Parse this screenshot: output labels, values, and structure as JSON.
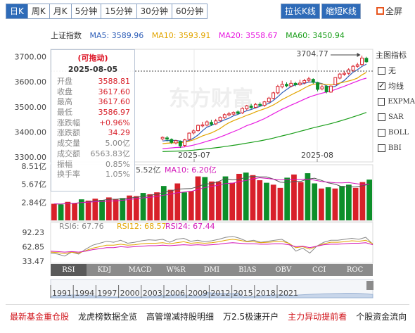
{
  "toolbar": {
    "tabs": [
      {
        "label": "日K",
        "active": true
      },
      {
        "label": "周K",
        "active": false
      },
      {
        "label": "月K",
        "active": false
      },
      {
        "label": "5分钟",
        "active": false
      },
      {
        "label": "15分钟",
        "active": false
      },
      {
        "label": "30分钟",
        "active": false
      },
      {
        "label": "60分钟",
        "active": false
      }
    ],
    "stretch_label": "拉长K线",
    "shrink_label": "缩短K线",
    "fullscreen_label": "全屏"
  },
  "indicator_header": {
    "name": "上证指数",
    "ma5": "MA5: 3589.96",
    "ma10": "MA10: 3593.91",
    "ma20": "MA20: 3558.67",
    "ma60": "MA60: 3450.94"
  },
  "colors": {
    "up": "#d8202a",
    "down": "#0d8f2a",
    "ma5": "#2f5fb8",
    "ma10": "#e2a500",
    "ma20": "#e81ae0",
    "ma60": "#1a9e1a",
    "accent": "#2e6bb8"
  },
  "right_panel": {
    "title": "主图指标",
    "options": [
      {
        "label": "无",
        "checked": false
      },
      {
        "label": "均线",
        "checked": true
      },
      {
        "label": "EXPMA",
        "checked": false
      },
      {
        "label": "SAR",
        "checked": false
      },
      {
        "label": "BOLL",
        "checked": false
      },
      {
        "label": "BBI",
        "checked": false
      }
    ]
  },
  "tooltip": {
    "header": "(可拖动)",
    "date": "2025-08-05",
    "rows": [
      {
        "key": "开盘",
        "value": "3588.81"
      },
      {
        "key": "收盘",
        "value": "3617.60"
      },
      {
        "key": "最高",
        "value": "3617.60"
      },
      {
        "key": "最低",
        "value": "3586.97"
      },
      {
        "key": "涨跌幅",
        "value": "+0.96%"
      },
      {
        "key": "涨跌额",
        "value": "34.29"
      },
      {
        "key": "成交量",
        "value": "5.00亿"
      },
      {
        "key": "成交额",
        "value": "6563.83亿"
      },
      {
        "key": "振幅",
        "value": "0.85%"
      },
      {
        "key": "换手率",
        "value": "1.05%"
      }
    ]
  },
  "main_axis": {
    "y_ticks": [
      "3700.00",
      "3600.00",
      "3500.00",
      "3400.00",
      "3300.00"
    ],
    "x_ticks": [
      "2025-07",
      "2025-08"
    ],
    "max_label": "3704.77",
    "watermark": "东方财富"
  },
  "volume_panel": {
    "y_ticks": [
      "8.51亿",
      "5.67亿",
      "2.84亿"
    ],
    "legend_ma5": "5.52亿",
    "legend_ma10": "MA10: 6.20亿"
  },
  "rsi_panel": {
    "y_ticks": [
      "92.23",
      "62.85",
      "33.47"
    ],
    "rsi6": "RSI6: 67.76",
    "rsi12": "RSI12: 68.57",
    "rsi24": "RSI24: 67.44"
  },
  "indicator_tabs": [
    "RSI",
    "KDJ",
    "MACD",
    "W%R",
    "DMI",
    "BIAS",
    "OBV",
    "CCI",
    "ROC"
  ],
  "timeline_years": [
    "1991",
    "1994",
    "1997",
    "2000",
    "2003",
    "2006",
    "2009",
    "2012",
    "2015",
    "2018",
    "2021"
  ],
  "footer_links": [
    {
      "label": "最新基金重仓股",
      "color": "red"
    },
    {
      "label": "龙虎榜数据全览",
      "color": "normal"
    },
    {
      "label": "高管增减持股明细",
      "color": "normal"
    },
    {
      "label": "万2.5极速开户",
      "color": "normal"
    },
    {
      "label": "主力异动提前看",
      "color": "red"
    },
    {
      "label": "个股资金流向",
      "color": "normal"
    }
  ],
  "chart_data": {
    "type": "candlestick",
    "price_range": [
      3280,
      3730
    ],
    "candles": [
      {
        "o": 3372,
        "c": 3378,
        "h": 3382,
        "l": 3366
      },
      {
        "o": 3376,
        "c": 3371,
        "h": 3384,
        "l": 3362
      },
      {
        "o": 3370,
        "c": 3358,
        "h": 3374,
        "l": 3352
      },
      {
        "o": 3356,
        "c": 3365,
        "h": 3368,
        "l": 3350
      },
      {
        "o": 3362,
        "c": 3344,
        "h": 3366,
        "l": 3336
      },
      {
        "o": 3346,
        "c": 3368,
        "h": 3372,
        "l": 3340
      },
      {
        "o": 3370,
        "c": 3395,
        "h": 3398,
        "l": 3366
      },
      {
        "o": 3396,
        "c": 3404,
        "h": 3410,
        "l": 3390
      },
      {
        "o": 3405,
        "c": 3426,
        "h": 3430,
        "l": 3400
      },
      {
        "o": 3424,
        "c": 3428,
        "h": 3440,
        "l": 3418
      },
      {
        "o": 3427,
        "c": 3440,
        "h": 3446,
        "l": 3422
      },
      {
        "o": 3438,
        "c": 3430,
        "h": 3448,
        "l": 3424
      },
      {
        "o": 3432,
        "c": 3444,
        "h": 3452,
        "l": 3428
      },
      {
        "o": 3445,
        "c": 3458,
        "h": 3462,
        "l": 3440
      },
      {
        "o": 3457,
        "c": 3469,
        "h": 3474,
        "l": 3452
      },
      {
        "o": 3468,
        "c": 3472,
        "h": 3480,
        "l": 3462
      },
      {
        "o": 3471,
        "c": 3478,
        "h": 3482,
        "l": 3466
      },
      {
        "o": 3480,
        "c": 3474,
        "h": 3486,
        "l": 3470
      },
      {
        "o": 3476,
        "c": 3494,
        "h": 3498,
        "l": 3472
      },
      {
        "o": 3492,
        "c": 3504,
        "h": 3508,
        "l": 3486
      },
      {
        "o": 3503,
        "c": 3497,
        "h": 3512,
        "l": 3492
      },
      {
        "o": 3498,
        "c": 3510,
        "h": 3516,
        "l": 3494
      },
      {
        "o": 3510,
        "c": 3506,
        "h": 3518,
        "l": 3502
      },
      {
        "o": 3506,
        "c": 3520,
        "h": 3524,
        "l": 3500
      },
      {
        "o": 3520,
        "c": 3535,
        "h": 3540,
        "l": 3516
      },
      {
        "o": 3534,
        "c": 3556,
        "h": 3560,
        "l": 3530
      },
      {
        "o": 3556,
        "c": 3582,
        "h": 3588,
        "l": 3550
      },
      {
        "o": 3580,
        "c": 3590,
        "h": 3604,
        "l": 3574
      },
      {
        "o": 3590,
        "c": 3584,
        "h": 3598,
        "l": 3578
      },
      {
        "o": 3583,
        "c": 3594,
        "h": 3606,
        "l": 3578
      },
      {
        "o": 3594,
        "c": 3588,
        "h": 3600,
        "l": 3582
      },
      {
        "o": 3589,
        "c": 3595,
        "h": 3608,
        "l": 3584
      },
      {
        "o": 3596,
        "c": 3605,
        "h": 3612,
        "l": 3590
      },
      {
        "o": 3606,
        "c": 3612,
        "h": 3620,
        "l": 3598
      },
      {
        "o": 3610,
        "c": 3598,
        "h": 3614,
        "l": 3592
      },
      {
        "o": 3597,
        "c": 3570,
        "h": 3600,
        "l": 3562
      },
      {
        "o": 3572,
        "c": 3580,
        "h": 3588,
        "l": 3566
      },
      {
        "o": 3582,
        "c": 3560,
        "h": 3586,
        "l": 3554
      },
      {
        "o": 3559,
        "c": 3583,
        "h": 3586,
        "l": 3556
      },
      {
        "o": 3588,
        "c": 3617,
        "h": 3618,
        "l": 3586
      },
      {
        "o": 3615,
        "c": 3631,
        "h": 3636,
        "l": 3610
      },
      {
        "o": 3630,
        "c": 3634,
        "h": 3642,
        "l": 3624
      },
      {
        "o": 3634,
        "c": 3648,
        "h": 3654,
        "l": 3628
      },
      {
        "o": 3646,
        "c": 3662,
        "h": 3668,
        "l": 3640
      },
      {
        "o": 3662,
        "c": 3668,
        "h": 3676,
        "l": 3656
      },
      {
        "o": 3669,
        "c": 3695,
        "h": 3704.77,
        "l": 3664
      },
      {
        "o": 3694,
        "c": 3680,
        "h": 3700,
        "l": 3676
      }
    ],
    "volume": [
      2.6,
      2.5,
      2.9,
      2.7,
      3.3,
      3.1,
      3.4,
      3.2,
      3.6,
      3.3,
      3.5,
      3.9,
      3.8,
      4.3,
      4.1,
      4.4,
      5.4,
      4.8,
      5.8,
      4.4,
      4.6,
      6.9,
      6.8,
      6.1,
      6.1,
      6.9,
      5.9,
      7.3,
      7.5,
      7.1,
      6.3,
      5.9,
      5.6,
      5.1,
      6.7,
      7.2,
      6.0,
      7.4,
      5.8,
      5.0,
      5.2,
      5.0,
      5.4,
      5.6,
      5.1,
      6.0,
      6.4
    ],
    "volume_range": [
      0,
      8.51
    ],
    "rsi_range": [
      33.47,
      92.23
    ],
    "series": [
      {
        "name": "RSI6",
        "values": [
          50,
          48,
          44,
          52,
          48,
          58,
          66,
          70,
          74,
          72,
          76,
          70,
          72,
          75,
          77,
          76,
          78,
          72,
          78,
          80,
          74,
          76,
          73,
          75,
          78,
          82,
          84,
          80,
          74,
          76,
          72,
          74,
          76,
          78,
          70,
          54,
          60,
          50,
          64,
          72,
          76,
          76,
          78,
          80,
          78,
          82,
          68
        ]
      },
      {
        "name": "RSI12",
        "values": [
          52,
          51,
          49,
          52,
          50,
          55,
          60,
          63,
          66,
          66,
          68,
          66,
          67,
          69,
          70,
          70,
          71,
          69,
          71,
          73,
          70,
          71,
          70,
          71,
          73,
          76,
          78,
          76,
          73,
          73,
          71,
          72,
          73,
          74,
          70,
          61,
          63,
          58,
          64,
          69,
          72,
          72,
          73,
          75,
          74,
          76,
          69
        ]
      },
      {
        "name": "RSI24",
        "values": [
          54,
          53,
          52,
          53,
          52,
          54,
          57,
          59,
          61,
          61,
          63,
          62,
          63,
          64,
          65,
          65,
          66,
          65,
          66,
          67,
          66,
          67,
          66,
          67,
          68,
          70,
          71,
          70,
          69,
          69,
          68,
          68,
          69,
          69,
          67,
          63,
          64,
          61,
          64,
          67,
          68,
          68,
          69,
          70,
          70,
          71,
          67
        ]
      }
    ]
  }
}
